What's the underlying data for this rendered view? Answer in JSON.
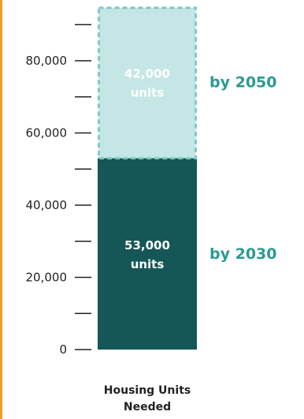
{
  "chart_data": {
    "type": "bar",
    "stacked": true,
    "categories": [
      "Housing Units Needed"
    ],
    "xlabel": "Housing Units Needed",
    "ylim": [
      0,
      92000
    ],
    "yticks": [
      0,
      20000,
      40000,
      60000,
      80000
    ],
    "ytick_labels": [
      "0",
      "20,000",
      "40,000",
      "60,000",
      "80,000"
    ],
    "minor_yticks": [
      10000,
      30000,
      50000,
      70000,
      90000
    ],
    "grid": false,
    "series": [
      {
        "name": "by 2030",
        "values": [
          53000
        ],
        "value_label": "53,000",
        "unit_label": "units",
        "color": "#155756",
        "style": "solid"
      },
      {
        "name": "by 2050",
        "values": [
          42000
        ],
        "value_label": "42,000",
        "unit_label": "units",
        "color": "#c4e6e4",
        "border_color": "#7ecbc6",
        "style": "dashed"
      }
    ],
    "side_label_color": "#2a9a92",
    "accent_color": "#f0a020"
  }
}
